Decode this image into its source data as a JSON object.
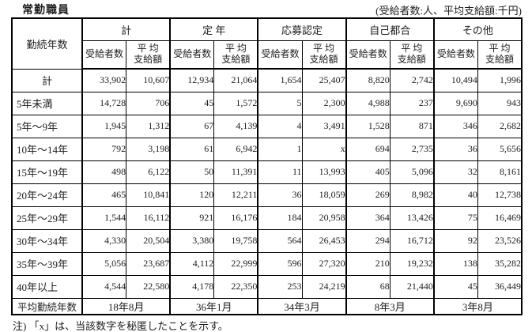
{
  "title": "常勤職員",
  "unit_note": "(受給者数:人、平均支給額:千円)",
  "footnote": "注) 「x」は、当該数字を秘匿したことを示す。",
  "table": {
    "row_axis_label": "勤続年数",
    "groups": [
      {
        "label": "計"
      },
      {
        "label": "定 年"
      },
      {
        "label": "応募認定"
      },
      {
        "label": "自己都合"
      },
      {
        "label": "その他"
      }
    ],
    "sub": {
      "recipients": "受給者数",
      "avg_line1": "平 均",
      "avg_line2": "支給額"
    },
    "rows": [
      {
        "label": "計",
        "values": [
          "33,902",
          "10,607",
          "12,934",
          "21,064",
          "1,654",
          "25,407",
          "8,820",
          "2,742",
          "10,494",
          "1,996"
        ]
      },
      {
        "label": "5年未満",
        "values": [
          "14,728",
          "706",
          "45",
          "1,572",
          "5",
          "2,300",
          "4,988",
          "237",
          "9,690",
          "943"
        ]
      },
      {
        "label": "5年～9年",
        "values": [
          "1,945",
          "1,312",
          "67",
          "4,139",
          "4",
          "3,491",
          "1,528",
          "871",
          "346",
          "2,682"
        ]
      },
      {
        "label": "10年～14年",
        "values": [
          "792",
          "3,198",
          "61",
          "6,942",
          "1",
          "x",
          "694",
          "2,735",
          "36",
          "5,656"
        ]
      },
      {
        "label": "15年～19年",
        "values": [
          "498",
          "6,122",
          "50",
          "11,391",
          "11",
          "13,993",
          "405",
          "5,096",
          "32",
          "8,161"
        ]
      },
      {
        "label": "20年～24年",
        "values": [
          "465",
          "10,841",
          "120",
          "12,211",
          "36",
          "18,059",
          "269",
          "8,982",
          "40",
          "12,738"
        ]
      },
      {
        "label": "25年～29年",
        "values": [
          "1,544",
          "16,112",
          "921",
          "16,176",
          "184",
          "20,958",
          "364",
          "13,426",
          "75",
          "16,469"
        ]
      },
      {
        "label": "30年～34年",
        "values": [
          "4,330",
          "20,504",
          "3,380",
          "19,758",
          "564",
          "26,453",
          "294",
          "16,712",
          "92",
          "23,526"
        ]
      },
      {
        "label": "35年～39年",
        "values": [
          "5,056",
          "23,687",
          "4,112",
          "22,999",
          "596",
          "27,320",
          "210",
          "19,232",
          "138",
          "35,282"
        ]
      },
      {
        "label": "40年以上",
        "values": [
          "4,544",
          "22,580",
          "4,178",
          "22,350",
          "253",
          "24,219",
          "68",
          "21,440",
          "45",
          "36,449"
        ]
      }
    ],
    "footer": {
      "label": "平均勤続年数",
      "values": [
        "18年8月",
        "36年1月",
        "34年3月",
        "8年3月",
        "3年8月"
      ]
    }
  }
}
